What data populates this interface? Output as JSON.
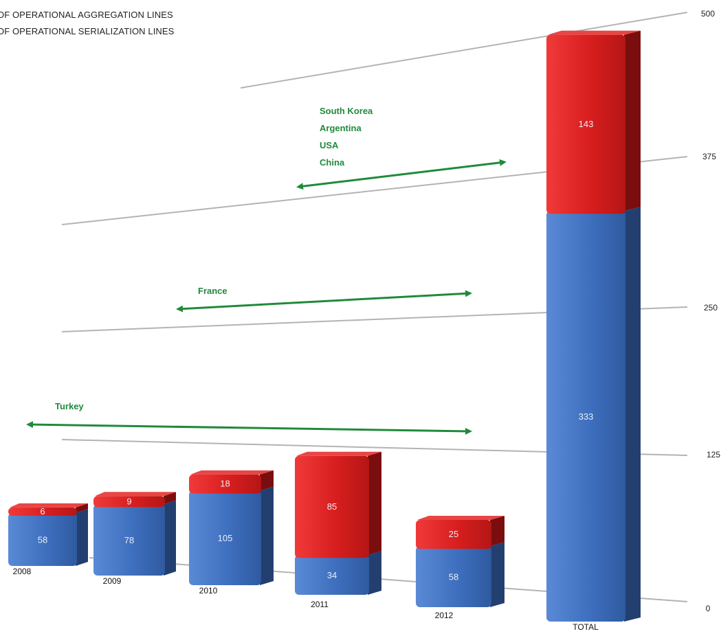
{
  "chart_data": {
    "type": "bar",
    "stacked": true,
    "legend": [
      {
        "name": "OF OPERATIONAL AGGREGATION LINES",
        "color": "#d81e1e"
      },
      {
        "name": "OF OPERATIONAL SERIALIZATION LINES",
        "color": "#3e6fbe"
      }
    ],
    "categories": [
      "2008",
      "2009",
      "2010",
      "2011",
      "2012",
      "TOTAL"
    ],
    "series": [
      {
        "key": "serialization",
        "color": "#3e6fbe",
        "values": [
          58,
          78,
          105,
          34,
          58,
          333
        ]
      },
      {
        "key": "aggregation",
        "color": "#d81e1e",
        "values": [
          6,
          9,
          18,
          85,
          25,
          143
        ]
      }
    ],
    "yticks": [
      0,
      125,
      250,
      375,
      500
    ],
    "ylim": [
      0,
      500
    ],
    "annotations": [
      {
        "labels": [
          "South Korea",
          "Argentina",
          "USA",
          "China"
        ]
      },
      {
        "labels": [
          "France"
        ]
      },
      {
        "labels": [
          "Turkey"
        ]
      }
    ],
    "colors": {
      "serialization": "#3e6fbe",
      "aggregation": "#d81e1e",
      "arrow": "#1f8a3a",
      "gridline": "#b3b3b3"
    }
  }
}
